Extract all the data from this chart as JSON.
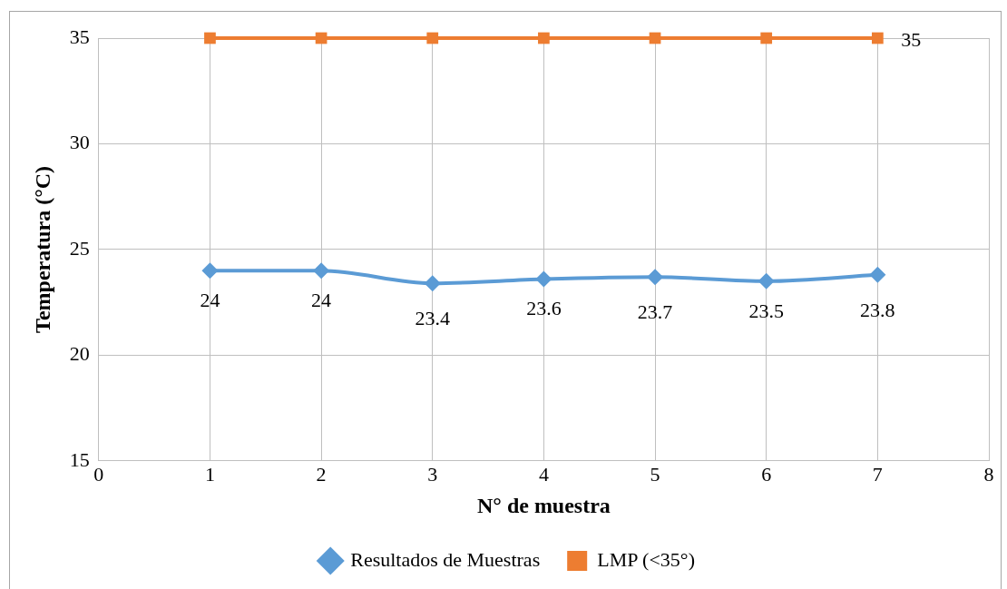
{
  "chart_data": {
    "type": "line",
    "xlabel": "N° de muestra",
    "ylabel": "Temperatura (°C)",
    "x": [
      1,
      2,
      3,
      4,
      5,
      6,
      7
    ],
    "xlim": [
      0,
      8
    ],
    "xticks": [
      0,
      1,
      2,
      3,
      4,
      5,
      6,
      7,
      8
    ],
    "ylim": [
      15,
      35
    ],
    "yticks": [
      15,
      20,
      25,
      30,
      35
    ],
    "grid": true,
    "legend": "bottom",
    "series": [
      {
        "name": "Resultados de Muestras",
        "color": "#5b9bd5",
        "marker": "diamond",
        "values": [
          24,
          24,
          23.4,
          23.6,
          23.7,
          23.5,
          23.8
        ],
        "value_labels": [
          "24",
          "24",
          "23.4",
          "23.6",
          "23.7",
          "23.5",
          "23.8"
        ]
      },
      {
        "name": "LMP (<35°)",
        "color": "#ed7d31",
        "marker": "square",
        "values": [
          35,
          35,
          35,
          35,
          35,
          35,
          35
        ],
        "value_labels": [
          null,
          null,
          null,
          null,
          null,
          null,
          "35"
        ]
      }
    ]
  }
}
